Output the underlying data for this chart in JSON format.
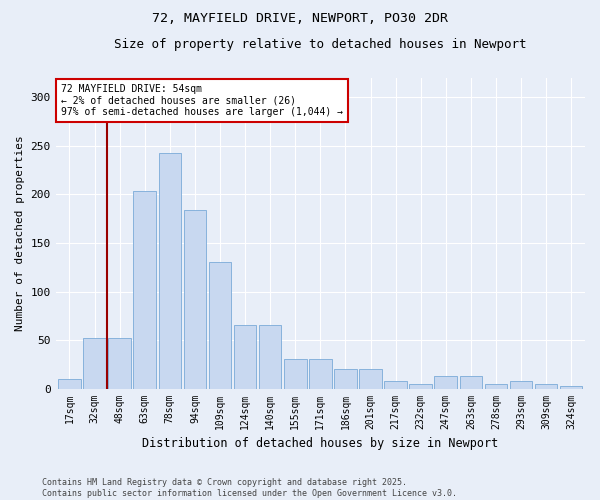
{
  "title1": "72, MAYFIELD DRIVE, NEWPORT, PO30 2DR",
  "title2": "Size of property relative to detached houses in Newport",
  "xlabel": "Distribution of detached houses by size in Newport",
  "ylabel": "Number of detached properties",
  "categories": [
    "17sqm",
    "32sqm",
    "48sqm",
    "63sqm",
    "78sqm",
    "94sqm",
    "109sqm",
    "124sqm",
    "140sqm",
    "155sqm",
    "171sqm",
    "186sqm",
    "201sqm",
    "217sqm",
    "232sqm",
    "247sqm",
    "263sqm",
    "278sqm",
    "293sqm",
    "309sqm",
    "324sqm"
  ],
  "values": [
    10,
    52,
    52,
    204,
    243,
    184,
    130,
    65,
    65,
    30,
    30,
    20,
    20,
    8,
    5,
    13,
    13,
    5,
    8,
    5,
    3
  ],
  "bar_color": "#c8d8f0",
  "bar_edge_color": "#7aaad8",
  "bg_color": "#e8eef8",
  "grid_color": "#ffffff",
  "vline_color": "#990000",
  "vline_pos": 1.5,
  "annotation_text": "72 MAYFIELD DRIVE: 54sqm\n← 2% of detached houses are smaller (26)\n97% of semi-detached houses are larger (1,044) →",
  "annotation_box_facecolor": "#ffffff",
  "annotation_box_edgecolor": "#cc0000",
  "footer": "Contains HM Land Registry data © Crown copyright and database right 2025.\nContains public sector information licensed under the Open Government Licence v3.0.",
  "ylim": [
    0,
    320
  ],
  "yticks": [
    0,
    50,
    100,
    150,
    200,
    250,
    300
  ]
}
